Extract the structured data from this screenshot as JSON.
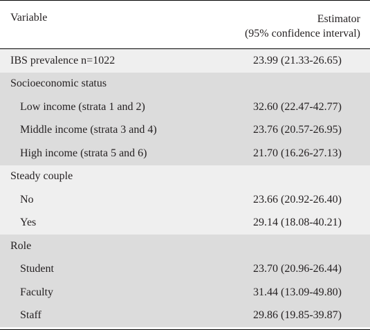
{
  "header": {
    "col1": "Variable",
    "col2_line1": "Estimator",
    "col2_line2": "(95% confidence interval)"
  },
  "rows": [
    {
      "label": "IBS prevalence n=1022",
      "value": "23.99 (21.33-26.65)"
    },
    {
      "label": "Socioeconomic status",
      "value": ""
    },
    {
      "label": "Low income (strata 1 and 2)",
      "value": "32.60 (22.47-42.77)"
    },
    {
      "label": "Middle income (strata 3 and 4)",
      "value": "23.76 (20.57-26.95)"
    },
    {
      "label": "High income (strata 5 and 6)",
      "value": "21.70 (16.26-27.13)"
    },
    {
      "label": "Steady couple",
      "value": ""
    },
    {
      "label": "No",
      "value": "23.66 (20.92-26.40)"
    },
    {
      "label": "Yes",
      "value": "29.14 (18.08-40.21)"
    },
    {
      "label": "Role",
      "value": ""
    },
    {
      "label": "Student",
      "value": "23.70 (20.96-26.44)"
    },
    {
      "label": "Faculty",
      "value": "31.44 (13.09-49.80)"
    },
    {
      "label": "Staff",
      "value": "29.86 (19.85-39.87)"
    }
  ]
}
